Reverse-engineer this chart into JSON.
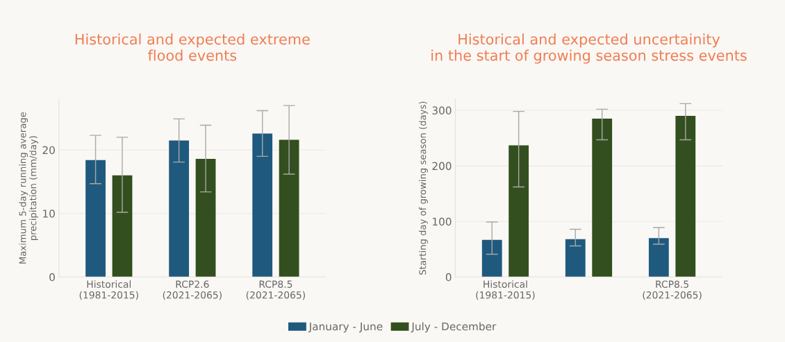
{
  "chart_data": [
    {
      "type": "bar",
      "title": "Historical and expected extreme\nflood events",
      "ylabel": "Maximum 5-day running average\nprecipitation (mm/day)",
      "categories": [
        "Historical\n(1981-2015)",
        "RCP2.6\n(2021-2065)",
        "RCP8.5\n(2021-2065)"
      ],
      "series": [
        {
          "color": "#1f5a7e",
          "values": [
            18.4,
            21.5,
            22.6
          ],
          "errors": [
            [
              14.7,
              22.3
            ],
            [
              18.1,
              24.9
            ],
            [
              19.0,
              26.2
            ]
          ]
        },
        {
          "color": "#334f1f",
          "values": [
            16.0,
            18.6,
            21.6
          ],
          "errors": [
            [
              10.2,
              22.0
            ],
            [
              13.4,
              23.9
            ],
            [
              16.2,
              27.0
            ]
          ]
        }
      ],
      "ylim": [
        0,
        28
      ],
      "yticks": [
        0,
        10,
        20
      ],
      "grid": "y",
      "legend": false
    },
    {
      "type": "bar",
      "title": "Historical and expected uncertainity\nin the start of growing season stress events",
      "ylabel": "Starting day of growing season (days)",
      "categories": [
        "Historical\n(1981-2015)",
        null,
        "RCP8.5\n(2021-2065)"
      ],
      "series": [
        {
          "name": "January - June",
          "color": "#1f5a7e",
          "values": [
            67,
            68,
            70
          ],
          "errors": [
            [
              41,
              99
            ],
            [
              56,
              86
            ],
            [
              59,
              89
            ]
          ]
        },
        {
          "name": "July - December",
          "color": "#334f1f",
          "values": [
            237,
            285,
            290
          ],
          "errors": [
            [
              162,
              298
            ],
            [
              247,
              302
            ],
            [
              247,
              312
            ]
          ]
        }
      ],
      "ylim": [
        0,
        320
      ],
      "yticks": [
        0,
        100,
        200,
        300
      ],
      "grid": "y",
      "legend": "bottom"
    }
  ]
}
